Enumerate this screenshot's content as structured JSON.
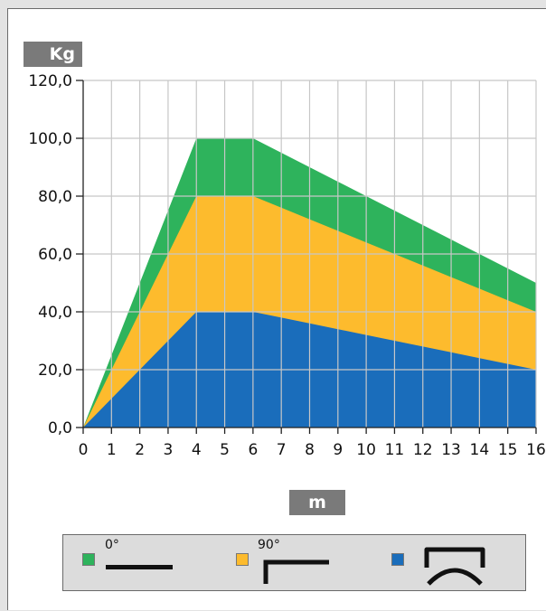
{
  "y_unit": "Kg",
  "x_unit": "m",
  "colors": {
    "series_0deg": "#2eb35c",
    "series_90deg": "#fdbb2d",
    "series_arch": "#1a6dbb",
    "grid": "#c7c7c7",
    "axis": "#222222"
  },
  "legend": [
    {
      "label": "0°",
      "color": "#2eb35c",
      "icon": "straight-line-icon"
    },
    {
      "label": "90°",
      "color": "#fdbb2d",
      "icon": "right-angle-icon"
    },
    {
      "label": "",
      "color": "#1a6dbb",
      "icon": "arch-icon"
    }
  ],
  "chart_data": {
    "type": "area",
    "title": "",
    "xlabel": "m",
    "ylabel": "Kg",
    "x": [
      0,
      1,
      2,
      3,
      4,
      5,
      6,
      7,
      8,
      9,
      10,
      11,
      12,
      13,
      14,
      15,
      16
    ],
    "xlim": [
      0,
      16
    ],
    "ylim": [
      0,
      120
    ],
    "y_ticks": [
      "0,0",
      "20,0",
      "40,0",
      "60,0",
      "80,0",
      "100,0",
      "120,0"
    ],
    "x_ticks": [
      "0",
      "1",
      "2",
      "3",
      "4",
      "5",
      "6",
      "7",
      "8",
      "9",
      "10",
      "11",
      "12",
      "13",
      "14",
      "15",
      "16"
    ],
    "grid": true,
    "series": [
      {
        "name": "0°",
        "color": "#2eb35c",
        "values": [
          0,
          25,
          50,
          75,
          100,
          100,
          100,
          95,
          90,
          85,
          80,
          75,
          70,
          65,
          60,
          55,
          50
        ]
      },
      {
        "name": "90°",
        "color": "#fdbb2d",
        "values": [
          0,
          20,
          40,
          60,
          80,
          80,
          80,
          76,
          72,
          68,
          64,
          60,
          56,
          52,
          48,
          44,
          40
        ]
      },
      {
        "name": "arch",
        "color": "#1a6dbb",
        "values": [
          0,
          10,
          20,
          30,
          40,
          40,
          40,
          38,
          36,
          34,
          32,
          30,
          28,
          26,
          24,
          22,
          20
        ]
      }
    ]
  }
}
